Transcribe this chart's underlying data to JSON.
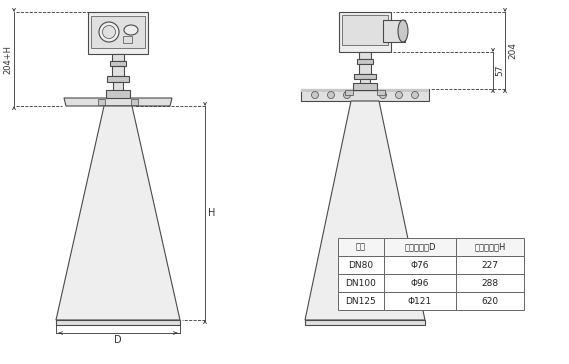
{
  "bg_color": "#ffffff",
  "line_color": "#4a4a4a",
  "table_headers": [
    "法兰",
    "喇叭口直径D",
    "喇叭口高度H"
  ],
  "table_rows": [
    [
      "DN80",
      "Φ76",
      "227"
    ],
    [
      "DN100",
      "Φ96",
      "288"
    ],
    [
      "DN125",
      "Φ121",
      "620"
    ]
  ],
  "dim_color": "#333333",
  "lw": 0.8,
  "lw_thin": 0.5,
  "gray_fill": "#e0e0e0",
  "gray_dark": "#c8c8c8",
  "gray_light": "#eeeeee"
}
